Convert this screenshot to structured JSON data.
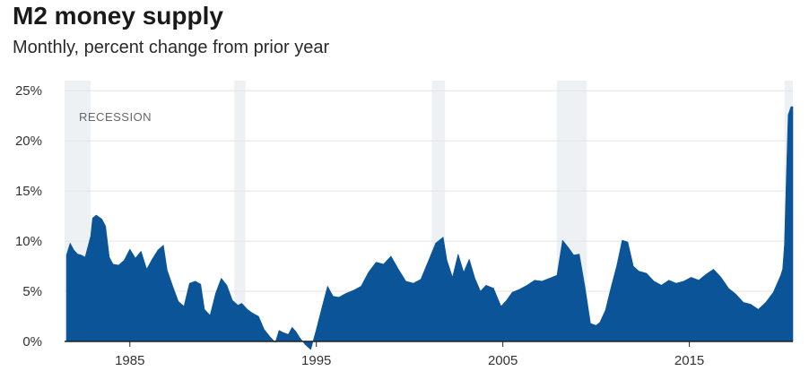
{
  "chart_data": {
    "type": "bar",
    "title": "M2 money supply",
    "subtitle": "Monthly, percent change from prior year",
    "annotation": "RECESSION",
    "ylim": [
      0,
      26
    ],
    "xlim": [
      1981.5,
      2020.55
    ],
    "yticks": [
      0,
      5,
      10,
      15,
      20,
      25
    ],
    "ytick_labels": [
      "0%",
      "5%",
      "10%",
      "15%",
      "20%",
      "25%"
    ],
    "xticks": [
      1985,
      1995,
      2005,
      2015
    ],
    "xtick_labels": [
      "1985",
      "1995",
      "2005",
      "2015"
    ],
    "grid": true,
    "colors": {
      "series": "#0a5497",
      "recession": "#eef1f4",
      "grid": "#e3e3e3",
      "axis": "#222222"
    },
    "recessions": [
      [
        1981.5,
        1982.9
      ],
      [
        1990.6,
        1991.2
      ],
      [
        2001.2,
        2001.9
      ],
      [
        2007.9,
        2009.5
      ],
      [
        2020.1,
        2020.6
      ]
    ],
    "series": [
      {
        "x": [
          1981.6,
          1981.8,
          1982.0,
          1982.2,
          1982.4,
          1982.6,
          1982.9,
          1983.0,
          1983.2,
          1983.5,
          1983.7,
          1983.9,
          1984.1,
          1984.4,
          1984.7,
          1985.0,
          1985.3,
          1985.6,
          1985.9,
          1986.2,
          1986.5,
          1986.8,
          1987.0,
          1987.3,
          1987.6,
          1987.9,
          1988.2,
          1988.5,
          1988.8,
          1989.0,
          1989.3,
          1989.6,
          1989.9,
          1990.2,
          1990.5,
          1990.8,
          1991.0,
          1991.3,
          1991.6,
          1991.9,
          1992.2,
          1992.5,
          1992.8,
          1993.0,
          1993.2,
          1993.5,
          1993.7,
          1993.9,
          1994.1,
          1994.4,
          1994.7,
          1995.0,
          1995.3,
          1995.6,
          1995.9,
          1996.2,
          1996.6,
          1997.0,
          1997.4,
          1997.8,
          1998.2,
          1998.6,
          1999.0,
          1999.4,
          1999.8,
          2000.2,
          2000.6,
          2001.0,
          2001.4,
          2001.8,
          2002.0,
          2002.3,
          2002.6,
          2002.9,
          2003.2,
          2003.5,
          2003.8,
          2004.1,
          2004.5,
          2004.9,
          2005.2,
          2005.5,
          2005.9,
          2006.3,
          2006.7,
          2007.1,
          2007.5,
          2007.9,
          2008.2,
          2008.5,
          2008.8,
          2009.1,
          2009.4,
          2009.7,
          2010.0,
          2010.2,
          2010.5,
          2010.8,
          2011.1,
          2011.4,
          2011.7,
          2012.0,
          2012.3,
          2012.7,
          2013.1,
          2013.5,
          2013.9,
          2014.3,
          2014.7,
          2015.1,
          2015.5,
          2015.9,
          2016.3,
          2016.7,
          2017.1,
          2017.5,
          2017.9,
          2018.3,
          2018.7,
          2019.1,
          2019.5,
          2019.9,
          2020.0,
          2020.1,
          2020.2,
          2020.3,
          2020.45
        ],
        "values": [
          8.6,
          9.8,
          9.1,
          8.7,
          8.6,
          8.4,
          10.5,
          12.3,
          12.6,
          12.2,
          11.5,
          8.4,
          7.7,
          7.6,
          8.1,
          9.2,
          8.3,
          9.0,
          7.2,
          8.2,
          9.1,
          9.6,
          7.1,
          5.5,
          4.0,
          3.5,
          5.8,
          6.0,
          5.7,
          3.2,
          2.6,
          4.8,
          6.3,
          5.6,
          4.1,
          3.6,
          3.8,
          3.2,
          2.8,
          2.5,
          1.2,
          0.5,
          -0.1,
          1.1,
          0.9,
          0.7,
          1.4,
          1.0,
          0.4,
          -0.3,
          -0.8,
          1.2,
          3.4,
          5.5,
          4.5,
          4.4,
          4.8,
          5.1,
          5.5,
          6.9,
          7.9,
          7.7,
          8.5,
          7.2,
          6.0,
          5.8,
          6.2,
          8.0,
          9.8,
          10.4,
          8.1,
          6.4,
          8.7,
          6.9,
          8.2,
          6.3,
          5.0,
          5.6,
          5.3,
          3.5,
          4.1,
          4.9,
          5.2,
          5.6,
          6.1,
          6.0,
          6.3,
          6.6,
          10.1,
          9.4,
          8.6,
          8.7,
          5.5,
          1.8,
          1.6,
          1.9,
          3.1,
          5.4,
          7.5,
          10.1,
          9.9,
          7.5,
          7.0,
          6.8,
          6.0,
          5.6,
          6.1,
          5.8,
          6.0,
          6.4,
          6.1,
          6.7,
          7.2,
          6.4,
          5.3,
          4.7,
          3.9,
          3.7,
          3.2,
          3.9,
          4.9,
          6.6,
          7.2,
          9.6,
          16.3,
          22.6,
          23.4
        ]
      }
    ]
  }
}
